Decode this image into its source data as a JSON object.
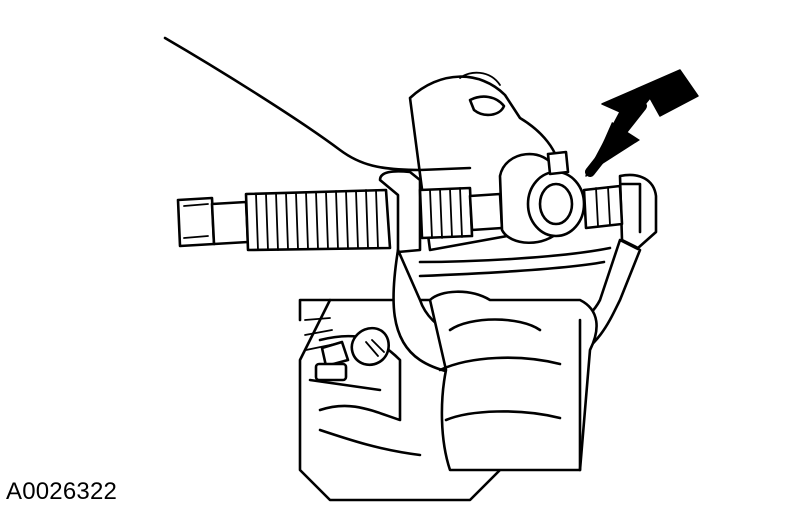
{
  "figure": {
    "id_label": "A0026322",
    "subject": "tie-rod-end-puller-on-steering-knuckle",
    "callout": "arrow-pointing-to-ball-joint-stud"
  },
  "colors": {
    "ink": "#000000",
    "paper": "#ffffff"
  }
}
